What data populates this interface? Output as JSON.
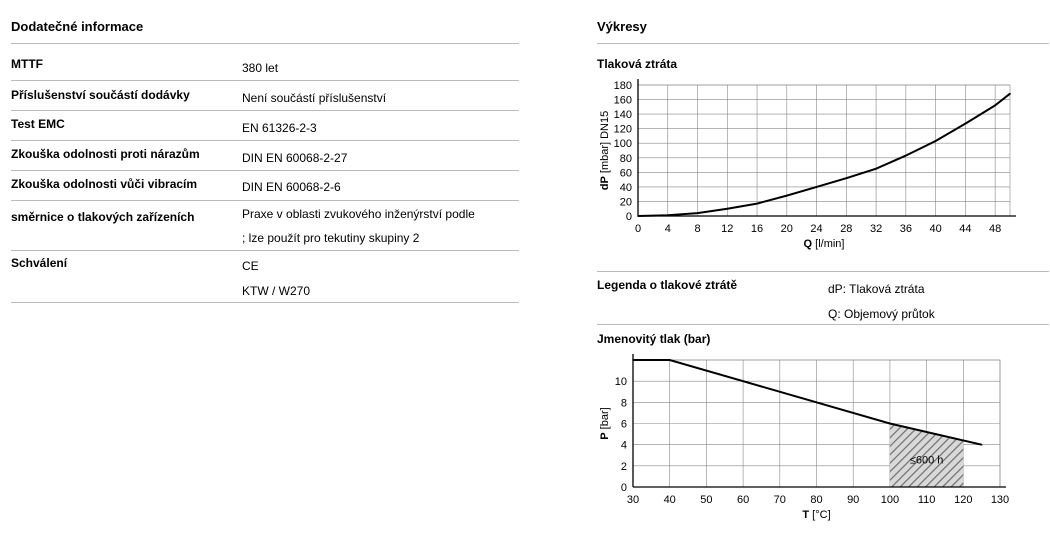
{
  "left": {
    "title": "Dodatečné informace",
    "rows": [
      {
        "label": "MTTF",
        "value": "380 let"
      },
      {
        "label": "Příslušenství součástí dodávky",
        "value": "Není součástí příslušenství"
      },
      {
        "label": "Test EMC",
        "value": "EN 61326-2-3"
      },
      {
        "label": "Zkouška odolnosti proti nárazům",
        "value": "DIN EN 60068-2-27"
      },
      {
        "label": "Zkouška odolnosti vůči vibracím",
        "value": "DIN EN 60068-2-6"
      },
      {
        "label": "směrnice o tlakových zařízeních",
        "value": "Praxe v oblasti zvukového inženýrství podle",
        "value2": "; lze použít pro tekutiny skupiny 2"
      },
      {
        "label": "Schválení",
        "value": "CE",
        "value2": "KTW / W270"
      }
    ]
  },
  "right": {
    "title": "Výkresy",
    "legend": {
      "title": "Legenda o tlakové ztrátě",
      "items": [
        "dP: Tlaková ztráta",
        "Q: Objemový průtok"
      ]
    }
  },
  "chart_data": [
    {
      "type": "line",
      "title": "Tlaková ztráta",
      "xlabel_bold": "Q",
      "xlabel_unit": "[l/min]",
      "ylabel_bold": "dP",
      "ylabel_unit": "[mbar] DN15",
      "xlim": [
        0,
        50
      ],
      "ylim": [
        0,
        180
      ],
      "xticks": [
        0,
        4,
        8,
        12,
        16,
        20,
        24,
        28,
        32,
        36,
        40,
        44,
        48
      ],
      "yticks": [
        0,
        20,
        40,
        60,
        80,
        100,
        120,
        140,
        160,
        180
      ],
      "grid": true,
      "x": [
        0,
        4,
        8,
        12,
        16,
        20,
        24,
        28,
        32,
        36,
        40,
        44,
        48,
        50
      ],
      "y": [
        0,
        1,
        4,
        10,
        17,
        28,
        40,
        52,
        65,
        83,
        103,
        127,
        152,
        168
      ]
    },
    {
      "type": "line",
      "title": "Jmenovitý tlak (bar)",
      "xlabel_bold": "T",
      "xlabel_unit": "[°C]",
      "ylabel_bold": "P",
      "ylabel_unit": "[bar]",
      "xlim": [
        30,
        130
      ],
      "ylim": [
        0,
        12
      ],
      "xticks": [
        30,
        40,
        50,
        60,
        70,
        80,
        90,
        100,
        110,
        120,
        130
      ],
      "yticks": [
        0,
        2,
        4,
        6,
        8,
        10
      ],
      "grid": true,
      "x": [
        30,
        40,
        100,
        125
      ],
      "y": [
        12,
        12,
        6,
        4
      ],
      "annotation": {
        "text": "≤600 h",
        "x_range": [
          100,
          120
        ]
      }
    }
  ]
}
